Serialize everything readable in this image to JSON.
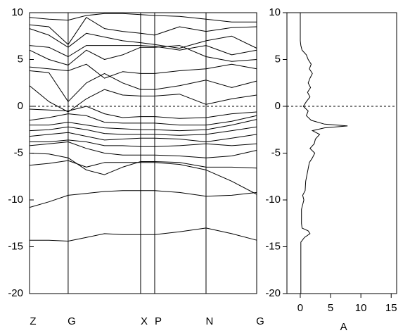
{
  "chart_data": [
    {
      "type": "line",
      "xlim": [
        0,
        1
      ],
      "ylim": [
        -20,
        10
      ],
      "yticks": [
        10,
        5,
        0,
        -5,
        -10,
        -15,
        -20
      ],
      "xticks": [
        {
          "value": 0,
          "label": "Z"
        },
        {
          "value": 0.17,
          "label": "G"
        },
        {
          "value": 0.489,
          "label": "X"
        },
        {
          "value": 0.551,
          "label": "P"
        },
        {
          "value": 0.777,
          "label": "N"
        },
        {
          "value": 1,
          "label": "G"
        }
      ],
      "hline": 0,
      "color": "#000000",
      "x": [
        0,
        0.085,
        0.17,
        0.25,
        0.33,
        0.41,
        0.489,
        0.551,
        0.66,
        0.777,
        0.89,
        1
      ],
      "series": [
        {
          "values": [
            -14.3,
            -14.3,
            -14.4,
            -14.0,
            -13.6,
            -13.7,
            -13.7,
            -13.7,
            -13.4,
            -13.0,
            -13.6,
            -14.3
          ]
        },
        {
          "values": [
            -10.8,
            -10.2,
            -9.5,
            -9.3,
            -9.1,
            -9.0,
            -9.0,
            -9.0,
            -9.2,
            -9.6,
            -9.5,
            -9.2
          ]
        },
        {
          "values": [
            -6.3,
            -6.1,
            -5.8,
            -6.5,
            -6.0,
            -6.0,
            -6.0,
            -6.0,
            -6.2,
            -6.8,
            -8.0,
            -9.4
          ]
        },
        {
          "values": [
            -5.0,
            -5.1,
            -5.5,
            -6.8,
            -7.3,
            -6.5,
            -5.9,
            -5.9,
            -6.0,
            -6.5,
            -6.5,
            -6.6
          ]
        },
        {
          "values": [
            -4.2,
            -4.0,
            -3.8,
            -4.5,
            -5.0,
            -5.2,
            -5.2,
            -5.2,
            -5.3,
            -5.5,
            -5.3,
            -4.7
          ]
        },
        {
          "values": [
            -3.8,
            -3.8,
            -3.6,
            -3.8,
            -4.2,
            -4.2,
            -4.3,
            -4.3,
            -4.2,
            -4.0,
            -4.2,
            -4.0
          ]
        },
        {
          "values": [
            -3.2,
            -3.0,
            -2.8,
            -3.2,
            -3.6,
            -3.5,
            -3.4,
            -3.4,
            -3.5,
            -3.8,
            -3.4,
            -3.0
          ]
        },
        {
          "values": [
            -2.6,
            -2.5,
            -2.2,
            -2.5,
            -2.9,
            -3.0,
            -3.0,
            -3.0,
            -3.1,
            -3.0,
            -2.6,
            -2.2
          ]
        },
        {
          "values": [
            -2.0,
            -2.0,
            -1.7,
            -2.0,
            -2.3,
            -2.4,
            -2.5,
            -2.5,
            -2.6,
            -2.5,
            -2.0,
            -1.4
          ]
        },
        {
          "values": [
            -1.5,
            -1.2,
            -0.8,
            -1.0,
            -1.7,
            -1.8,
            -1.8,
            -1.8,
            -2.0,
            -2.0,
            -1.6,
            -1.0
          ]
        },
        {
          "values": [
            -0.3,
            -0.4,
            -0.5,
            0.0,
            -0.8,
            -1.2,
            -1.1,
            -1.1,
            -1.3,
            -1.2,
            -0.8,
            -0.6
          ]
        },
        {
          "values": [
            2.2,
            0.5,
            -0.6,
            0.8,
            1.8,
            1.2,
            1.1,
            1.1,
            1.3,
            0.2,
            0.8,
            1.2
          ]
        },
        {
          "values": [
            3.8,
            3.6,
            0.5,
            2.5,
            3.5,
            2.5,
            1.8,
            1.8,
            2.2,
            2.8,
            2.0,
            2.7
          ]
        },
        {
          "values": [
            4.2,
            4.0,
            3.8,
            4.5,
            3.0,
            3.7,
            3.5,
            3.5,
            3.8,
            4.0,
            4.5,
            4.0
          ]
        },
        {
          "values": [
            6.0,
            5.0,
            4.4,
            6.0,
            5.0,
            5.5,
            6.3,
            6.3,
            6.5,
            5.3,
            4.8,
            5.0
          ]
        },
        {
          "values": [
            6.5,
            6.3,
            5.3,
            6.5,
            6.5,
            6.5,
            6.5,
            6.4,
            6.0,
            6.5,
            5.5,
            6.0
          ]
        },
        {
          "values": [
            8.3,
            7.6,
            6.3,
            7.8,
            7.4,
            7.0,
            6.8,
            6.6,
            6.2,
            7.0,
            7.5,
            6.2
          ]
        },
        {
          "values": [
            8.7,
            8.5,
            6.6,
            9.5,
            8.3,
            8.0,
            7.8,
            7.6,
            8.5,
            8.0,
            8.4,
            8.5
          ]
        },
        {
          "values": [
            9.5,
            9.3,
            9.2,
            9.7,
            9.9,
            9.9,
            9.8,
            9.7,
            9.6,
            9.3,
            9.0,
            9.0
          ]
        }
      ]
    },
    {
      "type": "line",
      "value_axis": "x",
      "xlabel": "A",
      "xlim": [
        -2.2,
        15.9
      ],
      "xticks": [
        0,
        5,
        10,
        15
      ],
      "ylim": [
        -20,
        10
      ],
      "yticks": [
        10,
        5,
        0,
        -5,
        -10,
        -15,
        -20
      ],
      "hline": 0,
      "color": "#000000",
      "y": [
        -20,
        -18,
        -16,
        -14.5,
        -14,
        -13.6,
        -13.3,
        -13,
        -12.5,
        -11,
        -10,
        -9.5,
        -9,
        -8,
        -7,
        -6,
        -5.5,
        -5,
        -4.5,
        -4,
        -3.5,
        -3,
        -2.6,
        -2.3,
        -2.1,
        -1.9,
        -1.5,
        -1,
        -0.5,
        0,
        0.5,
        1,
        1.5,
        2,
        2.5,
        3,
        3.5,
        4,
        4.5,
        5,
        5.5,
        6,
        6.5,
        7,
        8,
        9,
        10
      ],
      "values": [
        0.1,
        0.1,
        0.1,
        0.1,
        0.7,
        1.6,
        1.3,
        0.3,
        0.2,
        0.2,
        0.6,
        0.4,
        0.8,
        0.9,
        1.2,
        1.5,
        2.0,
        2.4,
        1.6,
        2.3,
        2.5,
        3.2,
        2.0,
        4.0,
        7.8,
        4.0,
        1.8,
        1.0,
        1.3,
        0.5,
        1.0,
        1.6,
        1.2,
        1.7,
        1.3,
        1.6,
        2.0,
        1.5,
        1.8,
        1.3,
        1.0,
        0.3,
        0.1,
        0.0,
        0.0,
        0.0,
        0.0
      ]
    }
  ]
}
